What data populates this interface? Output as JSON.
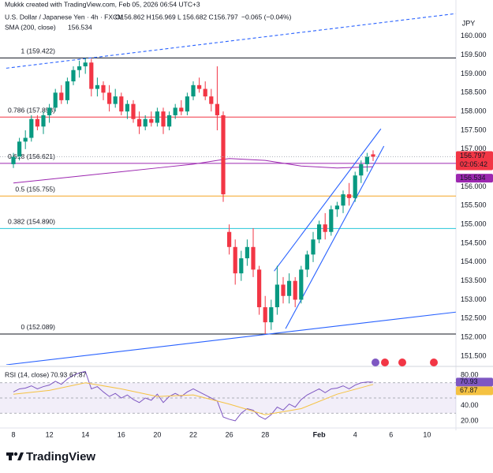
{
  "chart_data": {
    "type": "candlestick",
    "header": {
      "credit": "Mukkk created with TradingView.com, Feb 05, 2026 06:54 UTC+3",
      "symbol": "U.S. Dollar / Japanese Yen · 4h · FXCM",
      "keys": [
        "O",
        "H",
        "L",
        "C"
      ],
      "change": "−0.065 (−0.04%)",
      "currency": "JPY",
      "logo": "TradingView"
    },
    "categories": [
      "8",
      null,
      null,
      null,
      null,
      null,
      "12",
      null,
      null,
      null,
      null,
      null,
      "14",
      null,
      null,
      null,
      null,
      null,
      "16",
      null,
      null,
      null,
      null,
      null,
      "20",
      null,
      null,
      null,
      null,
      null,
      "22",
      null,
      null,
      null,
      null,
      null,
      "26",
      null,
      null,
      null,
      null,
      null,
      "28",
      null,
      null,
      null,
      null,
      null,
      null,
      null,
      null,
      "Feb",
      null,
      null,
      null,
      null,
      null,
      "4",
      null,
      null,
      null,
      null,
      null,
      "6",
      null,
      null,
      null,
      null,
      null,
      "10"
    ],
    "ohlc": [
      [
        156.6,
        156.9,
        156.5,
        156.8
      ],
      [
        156.8,
        157.3,
        156.7,
        157.2
      ],
      [
        157.2,
        157.5,
        157.0,
        157.3
      ],
      [
        157.3,
        157.9,
        157.2,
        157.8
      ],
      [
        157.8,
        157.9,
        157.5,
        157.6
      ],
      [
        157.6,
        158.0,
        157.4,
        157.9
      ],
      [
        157.9,
        158.2,
        157.7,
        158.1
      ],
      [
        158.1,
        158.6,
        158.0,
        158.5
      ],
      [
        158.5,
        158.7,
        158.2,
        158.3
      ],
      [
        158.3,
        158.9,
        158.2,
        158.8
      ],
      [
        158.8,
        159.2,
        158.7,
        159.1
      ],
      [
        159.1,
        159.35,
        158.9,
        159.2
      ],
      [
        159.2,
        159.422,
        159.0,
        159.3
      ],
      [
        159.3,
        159.4,
        158.4,
        158.6
      ],
      [
        158.6,
        158.9,
        158.4,
        158.7
      ],
      [
        158.7,
        158.8,
        158.3,
        158.5
      ],
      [
        158.5,
        158.7,
        158.0,
        158.2
      ],
      [
        158.2,
        158.6,
        158.1,
        158.4
      ],
      [
        158.4,
        158.5,
        157.9,
        158.0
      ],
      [
        158.0,
        158.3,
        157.8,
        158.2
      ],
      [
        158.2,
        158.3,
        157.7,
        157.8
      ],
      [
        157.8,
        158.0,
        157.4,
        157.6
      ],
      [
        157.6,
        157.9,
        157.5,
        157.8
      ],
      [
        157.8,
        158.0,
        157.6,
        157.7
      ],
      [
        157.7,
        158.1,
        157.6,
        158.0
      ],
      [
        158.0,
        158.1,
        157.4,
        157.6
      ],
      [
        157.6,
        158.0,
        157.5,
        157.9
      ],
      [
        157.9,
        158.2,
        157.8,
        158.1
      ],
      [
        158.1,
        158.3,
        157.9,
        158.0
      ],
      [
        158.0,
        158.5,
        157.9,
        158.4
      ],
      [
        158.4,
        158.8,
        158.3,
        158.7
      ],
      [
        158.7,
        158.9,
        158.5,
        158.6
      ],
      [
        158.6,
        158.8,
        158.3,
        158.4
      ],
      [
        158.4,
        158.6,
        158.0,
        158.2
      ],
      [
        158.2,
        159.2,
        157.5,
        157.9
      ],
      [
        157.9,
        158.0,
        155.6,
        155.8
      ],
      [
        154.8,
        155.0,
        154.2,
        154.4
      ],
      [
        154.4,
        154.6,
        153.4,
        153.7
      ],
      [
        153.7,
        154.3,
        153.5,
        154.1
      ],
      [
        154.1,
        154.6,
        153.9,
        154.4
      ],
      [
        154.4,
        154.9,
        153.6,
        153.8
      ],
      [
        153.8,
        153.9,
        152.6,
        152.8
      ],
      [
        152.8,
        153.1,
        152.089,
        152.4
      ],
      [
        152.4,
        153.0,
        152.2,
        152.8
      ],
      [
        152.8,
        153.9,
        152.6,
        153.4
      ],
      [
        153.4,
        153.6,
        152.9,
        153.1
      ],
      [
        153.1,
        153.7,
        152.9,
        153.5
      ],
      [
        153.5,
        153.6,
        152.8,
        153.0
      ],
      [
        153.0,
        153.9,
        152.9,
        153.8
      ],
      [
        153.8,
        154.3,
        153.6,
        154.2
      ],
      [
        154.2,
        154.8,
        154.0,
        154.6
      ],
      [
        154.6,
        155.1,
        154.5,
        155.0
      ],
      [
        155.0,
        155.3,
        154.6,
        154.8
      ],
      [
        154.8,
        155.5,
        154.7,
        155.4
      ],
      [
        155.4,
        155.6,
        155.2,
        155.5
      ],
      [
        155.5,
        155.9,
        155.3,
        155.8
      ],
      [
        155.8,
        156.1,
        155.5,
        155.7
      ],
      [
        155.7,
        156.4,
        155.6,
        156.3
      ],
      [
        156.3,
        156.7,
        156.1,
        156.6
      ],
      [
        156.6,
        156.9,
        156.4,
        156.8
      ],
      [
        156.862,
        156.969,
        156.682,
        156.797
      ],
      null,
      null,
      null,
      null,
      null,
      null,
      null,
      null,
      null
    ],
    "up_color": "#089981",
    "down_color": "#f23645",
    "ylim": [
      151.27,
      160.71
    ],
    "yticks": [
      {
        "value": 160,
        "label": "160.000"
      },
      {
        "value": 159.5,
        "label": "159.500"
      },
      {
        "value": 159,
        "label": "159.000"
      },
      {
        "value": 158.5,
        "label": "158.500"
      },
      {
        "value": 158,
        "label": "158.000"
      },
      {
        "value": 157.5,
        "label": "157.500"
      },
      {
        "value": 157,
        "label": "157.000"
      },
      {
        "value": 156.5,
        "label": "156.500"
      },
      {
        "value": 156,
        "label": "156.000"
      },
      {
        "value": 155.5,
        "label": "155.500"
      },
      {
        "value": 155,
        "label": "155.000"
      },
      {
        "value": 154.5,
        "label": "154.500"
      },
      {
        "value": 154,
        "label": "154.000"
      },
      {
        "value": 153.5,
        "label": "153.500"
      },
      {
        "value": 153,
        "label": "153.000"
      },
      {
        "value": 152.5,
        "label": "152.500"
      },
      {
        "value": 152,
        "label": "152.000"
      },
      {
        "value": 151.5,
        "label": "151.500"
      }
    ],
    "grid": false,
    "countdown": "02:05:42",
    "sma": {
      "name": "SMA (200, close)",
      "color": "#9c27b0",
      "x": [
        0,
        6,
        12,
        18,
        24,
        30,
        36,
        42,
        48,
        54,
        60
      ],
      "values": [
        156.1,
        156.2,
        156.3,
        156.4,
        156.5,
        156.6,
        156.75,
        156.7,
        156.55,
        156.5,
        156.534
      ]
    },
    "fib": [
      {
        "label": "1 (159.422)",
        "value": 159.422,
        "color": "#131722"
      },
      {
        "label": "0.786 (157.853)",
        "value": 157.853,
        "color": "#f23645"
      },
      {
        "label": "0.618 (156.621)",
        "value": 156.621,
        "color": "#9c27b0"
      },
      {
        "label": "0.5 (155.755)",
        "value": 155.755,
        "color": "#f5a623"
      },
      {
        "label": "0.382 (154.890)",
        "value": 154.89,
        "color": "#26c6da"
      },
      {
        "label": "0 (152.089)",
        "value": 152.089,
        "color": "#131722"
      }
    ],
    "trendlines": [
      {
        "x": [
          -1.2,
          73.8
        ],
        "values": [
          159.15,
          160.6
        ],
        "color": "#2962ff",
        "dashed": true
      },
      {
        "x": [
          -1.2,
          73.8
        ],
        "values": [
          151.27,
          152.67
        ],
        "color": "#2962ff",
        "dashed": false
      },
      {
        "x": [
          43.5,
          61.3
        ],
        "values": [
          153.76,
          157.54
        ],
        "color": "#2962ff",
        "dashed": false
      },
      {
        "x": [
          45.4,
          61.8
        ],
        "values": [
          152.23,
          157.08
        ],
        "color": "#2962ff",
        "dashed": false
      }
    ],
    "rsi": {
      "name": "RSI (14, close)",
      "color": "#7e57c2",
      "values": [
        58,
        62,
        63,
        66,
        62,
        65,
        67,
        72,
        68,
        75,
        80,
        83,
        85,
        62,
        65,
        58,
        52,
        56,
        50,
        54,
        48,
        44,
        50,
        47,
        55,
        44,
        52,
        56,
        52,
        58,
        62,
        58,
        54,
        50,
        46,
        25,
        22,
        20,
        30,
        36,
        34,
        26,
        22,
        28,
        38,
        34,
        42,
        38,
        48,
        54,
        58,
        62,
        57,
        62,
        63,
        66,
        62,
        67,
        70,
        71,
        70.93
      ]
    },
    "rsi_ma": {
      "color": "#f5c242",
      "x": [
        0,
        6,
        12,
        18,
        24,
        30,
        36,
        42,
        48,
        54,
        60
      ],
      "values": [
        55,
        60,
        70,
        62,
        52,
        54,
        42,
        28,
        36,
        55,
        67.87
      ]
    },
    "rsi_levels": [
      70,
      50,
      30
    ],
    "rsi_ylim": [
      12.6,
      89.5
    ],
    "rsi_yticks": [
      {
        "value": 80,
        "label": "80.00"
      },
      {
        "value": 40,
        "label": "40.00"
      },
      {
        "value": 20,
        "label": "20.00"
      }
    ]
  }
}
